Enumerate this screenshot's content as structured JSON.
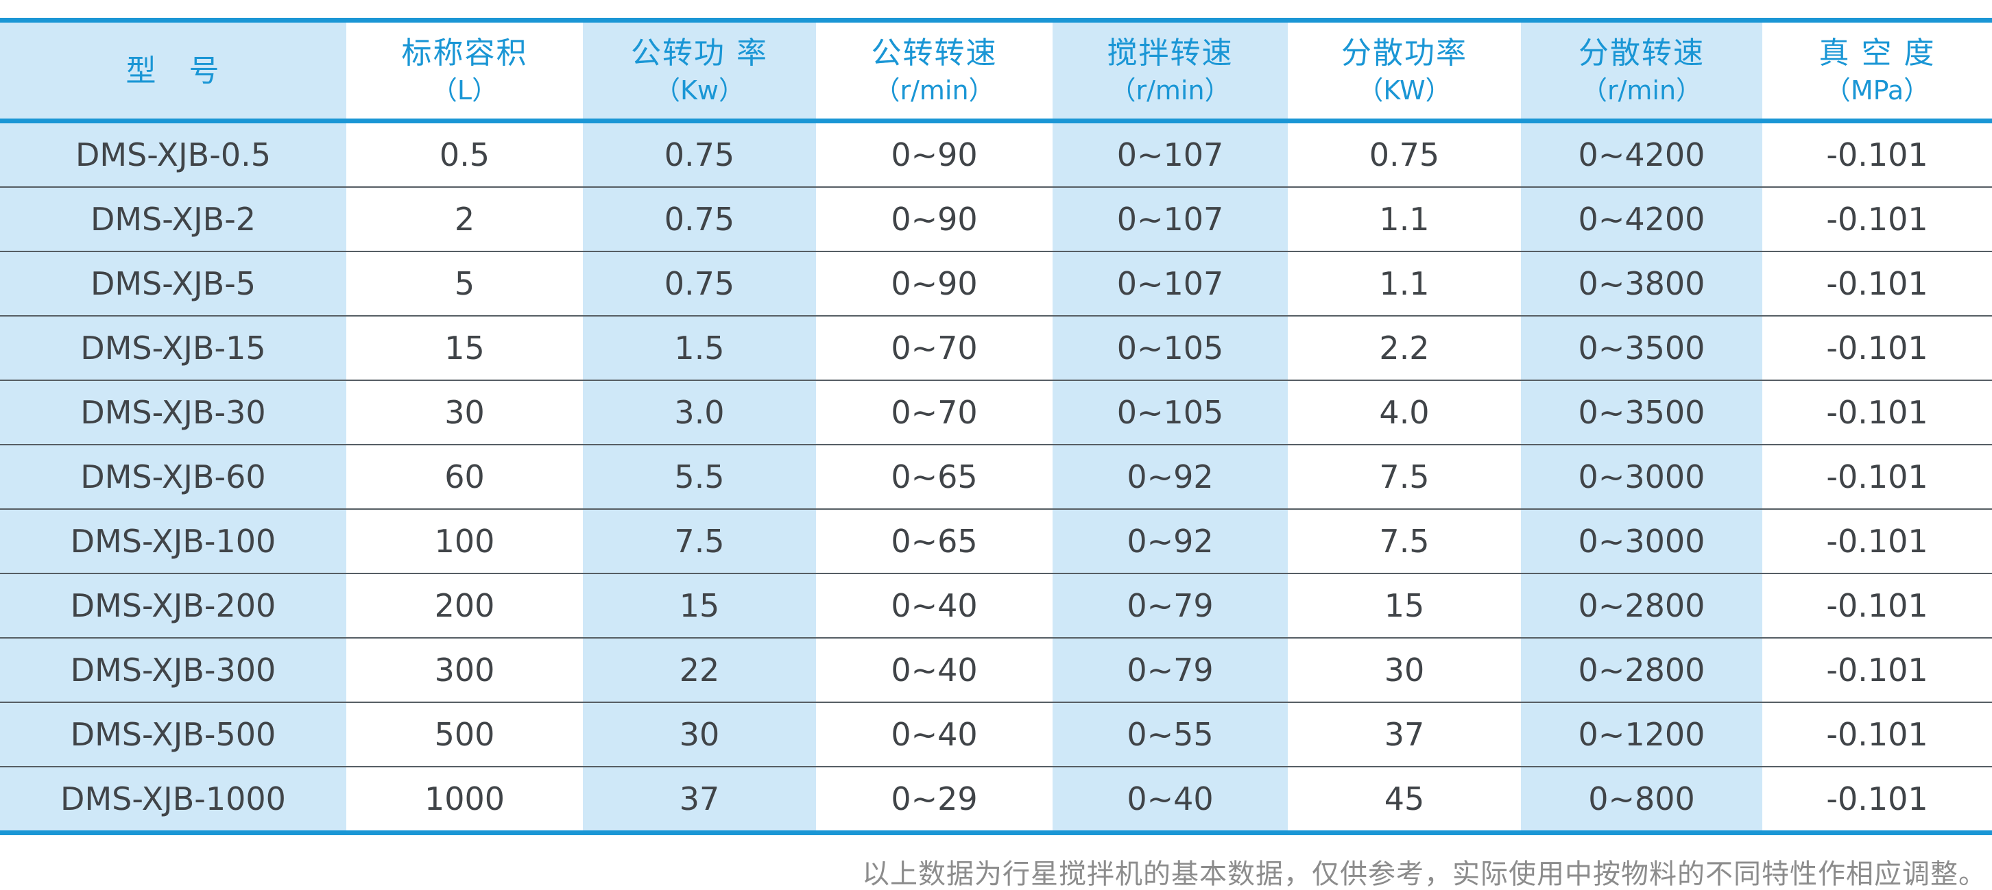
{
  "table": {
    "columns": [
      {
        "title": "型　号",
        "unit": "",
        "bg": "blue"
      },
      {
        "title": "标称容积",
        "unit": "（L）",
        "bg": "white"
      },
      {
        "title": "公转功 率",
        "unit": "（Kw）",
        "bg": "blue"
      },
      {
        "title": "公转转速",
        "unit": "（r/min）",
        "bg": "white"
      },
      {
        "title": "搅拌转速",
        "unit": "（r/min）",
        "bg": "blue"
      },
      {
        "title": "分散功率",
        "unit": "（KW）",
        "bg": "white"
      },
      {
        "title": "分散转速",
        "unit": "（r/min）",
        "bg": "blue"
      },
      {
        "title": "真 空 度",
        "unit": "（MPa）",
        "bg": "white"
      }
    ],
    "rows": [
      {
        "cells": [
          "DMS-XJB-0.5",
          "0.5",
          "0.75",
          "0~90",
          "0~107",
          "0.75",
          "0~4200",
          "-0.101"
        ]
      },
      {
        "cells": [
          "DMS-XJB-2",
          "2",
          "0.75",
          "0~90",
          "0~107",
          "1.1",
          "0~4200",
          "-0.101"
        ]
      },
      {
        "cells": [
          "DMS-XJB-5",
          "5",
          "0.75",
          "0~90",
          "0~107",
          "1.1",
          "0~3800",
          "-0.101"
        ]
      },
      {
        "cells": [
          "DMS-XJB-15",
          "15",
          "1.5",
          "0~70",
          "0~105",
          "2.2",
          "0~3500",
          "-0.101"
        ]
      },
      {
        "cells": [
          "DMS-XJB-30",
          "30",
          "3.0",
          "0~70",
          "0~105",
          "4.0",
          "0~3500",
          "-0.101"
        ]
      },
      {
        "cells": [
          "DMS-XJB-60",
          "60",
          "5.5",
          "0~65",
          "0~92",
          "7.5",
          "0~3000",
          "-0.101"
        ]
      },
      {
        "cells": [
          "DMS-XJB-100",
          "100",
          "7.5",
          "0~65",
          "0~92",
          "7.5",
          "0~3000",
          "-0.101"
        ]
      },
      {
        "cells": [
          "DMS-XJB-200",
          "200",
          "15",
          "0~40",
          "0~79",
          "15",
          "0~2800",
          "-0.101"
        ]
      },
      {
        "cells": [
          "DMS-XJB-300",
          "300",
          "22",
          "0~40",
          "0~79",
          "30",
          "0~2800",
          "-0.101"
        ]
      },
      {
        "cells": [
          "DMS-XJB-500",
          "500",
          "30",
          "0~40",
          "0~55",
          "37",
          "0~1200",
          "-0.101"
        ]
      },
      {
        "cells": [
          "DMS-XJB-1000",
          "1000",
          "37",
          "0~29",
          "0~40",
          "45",
          "0~800",
          "-0.101"
        ]
      }
    ]
  },
  "footer": {
    "note": "以上数据为行星搅拌机的基本数据，仅供参考，实际使用中按物料的不同特性作相应调整。"
  },
  "colors": {
    "accent_blue": "#1a96d5",
    "band_light_blue": "#cfe8f8",
    "cell_text": "#404448",
    "row_separator": "#565e64",
    "note_text": "#8c8c8c"
  }
}
